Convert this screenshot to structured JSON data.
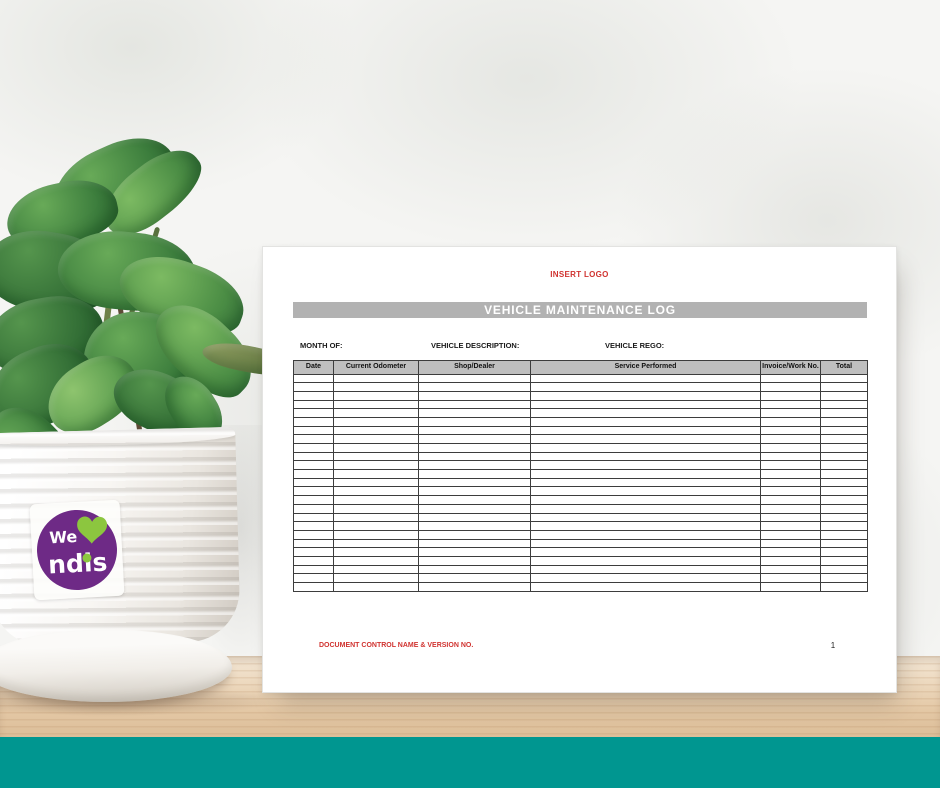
{
  "scene": {
    "bottom_bar_color": "#009690"
  },
  "sticker": {
    "word_we": "We",
    "word_ndis": "ndis",
    "heart_icon": "heart-icon",
    "purple": "#6e2a86",
    "green": "#8cc63f"
  },
  "document": {
    "logo_placeholder": "INSERT LOGO",
    "title": "VEHICLE MAINTENANCE LOG",
    "field_labels": {
      "month": "MONTH OF:",
      "description": "VEHICLE DESCRIPTION:",
      "rego": "VEHICLE REGO:"
    },
    "table": {
      "columns": [
        "Date",
        "Current Odometer",
        "Shop/Dealer",
        "Service Performed",
        "Invoice/Work No.",
        "Total"
      ],
      "empty_row_count": 25
    },
    "footer": {
      "note": "DOCUMENT CONTROL NAME & VERSION NO.",
      "page_number": "1"
    },
    "colors": {
      "red_text": "#d03330",
      "title_bar_bg": "#b2b2b2",
      "table_header_bg": "#bfbfbf"
    }
  }
}
